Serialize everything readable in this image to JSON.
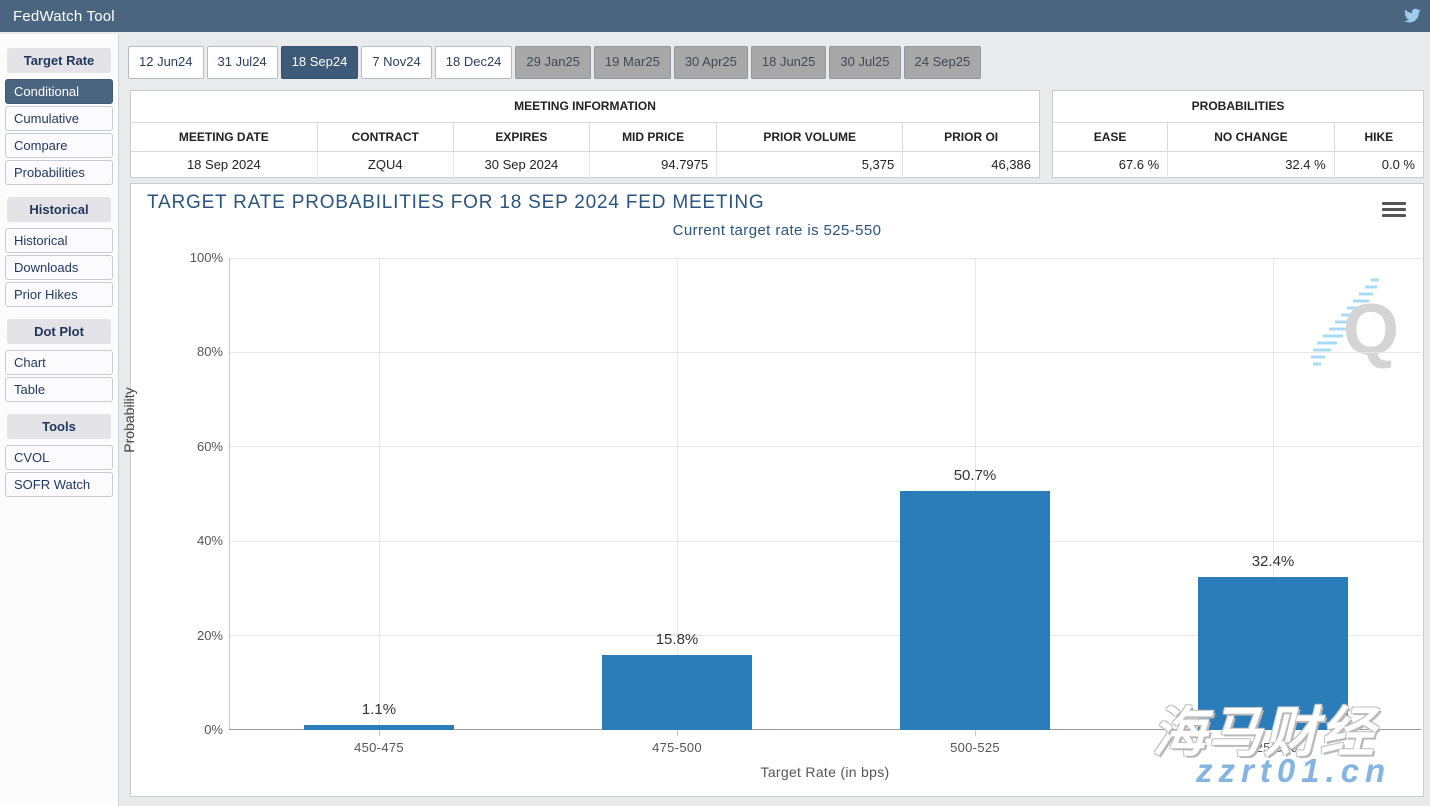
{
  "app": {
    "title": "FedWatch Tool"
  },
  "sidebar": {
    "sections": [
      {
        "header": "Target Rate",
        "items": [
          {
            "label": "Conditional",
            "selected": true
          },
          {
            "label": "Cumulative",
            "selected": false
          },
          {
            "label": "Compare",
            "selected": false
          },
          {
            "label": "Probabilities",
            "selected": false
          }
        ]
      },
      {
        "header": "Historical",
        "items": [
          {
            "label": "Historical",
            "selected": false
          },
          {
            "label": "Downloads",
            "selected": false
          },
          {
            "label": "Prior Hikes",
            "selected": false
          }
        ]
      },
      {
        "header": "Dot Plot",
        "items": [
          {
            "label": "Chart",
            "selected": false
          },
          {
            "label": "Table",
            "selected": false
          }
        ]
      },
      {
        "header": "Tools",
        "items": [
          {
            "label": "CVOL",
            "selected": false
          },
          {
            "label": "SOFR Watch",
            "selected": false
          }
        ]
      }
    ]
  },
  "tabs": [
    {
      "label": "12 Jun24",
      "state": "normal"
    },
    {
      "label": "31 Jul24",
      "state": "normal"
    },
    {
      "label": "18 Sep24",
      "state": "selected"
    },
    {
      "label": "7 Nov24",
      "state": "normal"
    },
    {
      "label": "18 Dec24",
      "state": "normal"
    },
    {
      "label": "29 Jan25",
      "state": "disabled"
    },
    {
      "label": "19 Mar25",
      "state": "disabled"
    },
    {
      "label": "30 Apr25",
      "state": "disabled"
    },
    {
      "label": "18 Jun25",
      "state": "disabled"
    },
    {
      "label": "30 Jul25",
      "state": "disabled"
    },
    {
      "label": "24 Sep25",
      "state": "disabled"
    }
  ],
  "meeting_info": {
    "title": "MEETING INFORMATION",
    "columns": [
      "MEETING DATE",
      "CONTRACT",
      "EXPIRES",
      "MID PRICE",
      "PRIOR VOLUME",
      "PRIOR OI"
    ],
    "values": [
      "18 Sep 2024",
      "ZQU4",
      "30 Sep 2024",
      "94.7975",
      "5,375",
      "46,386"
    ]
  },
  "probabilities": {
    "title": "PROBABILITIES",
    "columns": [
      "EASE",
      "NO CHANGE",
      "HIKE"
    ],
    "values": [
      "67.6 %",
      "32.4 %",
      "0.0 %"
    ]
  },
  "chart_data": {
    "type": "bar",
    "title": "TARGET RATE PROBABILITIES FOR 18 SEP 2024 FED MEETING",
    "subtitle": "Current target rate is 525-550",
    "categories": [
      "450-475",
      "475-500",
      "500-525",
      "525-550"
    ],
    "values": [
      1.1,
      15.8,
      50.7,
      32.4
    ],
    "data_labels": [
      "1.1%",
      "15.8%",
      "50.7%",
      "32.4%"
    ],
    "xlabel": "Target Rate (in bps)",
    "ylabel": "Probability",
    "ylim": [
      0,
      100
    ],
    "ytick_labels": [
      "0%",
      "20%",
      "40%",
      "60%",
      "80%",
      "100%"
    ],
    "bar_color": "#2a7db8",
    "grid": "on",
    "legend": "none"
  },
  "watermarks": {
    "quikstrike_letter": "Q",
    "brand_cn": "海马财经",
    "brand_url": "zzrt01.cn"
  },
  "colors": {
    "accent_bar": "#2a7db8",
    "topbar": "#4a6580",
    "selected_tab": "#3d5a78"
  }
}
